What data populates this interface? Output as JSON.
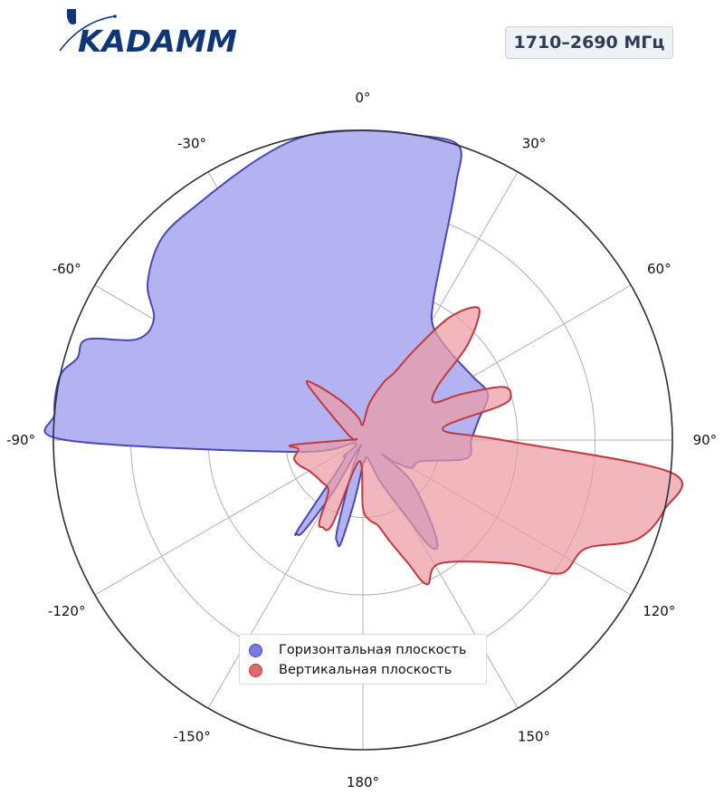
{
  "header": {
    "logo_text": "KADAMM",
    "band_label": "1710–2690 МГц"
  },
  "colors": {
    "horizontal_fill": "#b3b3f2",
    "horizontal_stroke": "#4b46b8",
    "vertical_fill": "#ec9ba3",
    "vertical_stroke": "#c0393f",
    "legend_horizontal": "#7a78ea",
    "legend_vertical": "#e0686f",
    "logo": "#10367a",
    "grid": "#b0b0b0",
    "outline": "#2d2d3a"
  },
  "chart_data": {
    "type": "polar-area",
    "theta_zero": "top",
    "theta_direction": "clockwise",
    "grid": true,
    "r_range": [
      0,
      1
    ],
    "r_gridlines": [
      0.25,
      0.5,
      0.75
    ],
    "theta_ticks": [
      "0°",
      "30°",
      "60°",
      "90°",
      "120°",
      "150°",
      "180°",
      "-150°",
      "-120°",
      "-90°",
      "-60°",
      "-30°"
    ],
    "legend_position": "bottom-center",
    "series": [
      {
        "name": "Горизонтальная плоскость",
        "points": [
          [
            0,
            1.0
          ],
          [
            10,
            1.0
          ],
          [
            18,
            1.0
          ],
          [
            20,
            0.88
          ],
          [
            23,
            0.66
          ],
          [
            27,
            0.5
          ],
          [
            32,
            0.43
          ],
          [
            45,
            0.4
          ],
          [
            60,
            0.41
          ],
          [
            70,
            0.43
          ],
          [
            80,
            0.38
          ],
          [
            90,
            0.35
          ],
          [
            100,
            0.34
          ],
          [
            110,
            0.2
          ],
          [
            120,
            0.18
          ],
          [
            125,
            0.12
          ],
          [
            127,
            0.08
          ],
          [
            130,
            0.2
          ],
          [
            140,
            0.34
          ],
          [
            145,
            0.42
          ],
          [
            148,
            0.4
          ],
          [
            150,
            0.3
          ],
          [
            157,
            0.15
          ],
          [
            165,
            0.06
          ],
          [
            175,
            0.07
          ],
          [
            180,
            0.08
          ],
          [
            188,
            0.2
          ],
          [
            192,
            0.34
          ],
          [
            194,
            0.34
          ],
          [
            196,
            0.3
          ],
          [
            200,
            0.1
          ],
          [
            205,
            0.02
          ],
          [
            210,
            0.2
          ],
          [
            213,
            0.35
          ],
          [
            215,
            0.37
          ],
          [
            216,
            0.35
          ],
          [
            222,
            0.1
          ],
          [
            230,
            0.08
          ],
          [
            250,
            0.03
          ],
          [
            260,
            0.22
          ],
          [
            270,
            0.96
          ],
          [
            275,
            1.0
          ],
          [
            282,
            1.0
          ],
          [
            286,
            0.96
          ],
          [
            290,
            0.95
          ],
          [
            294,
            0.8
          ],
          [
            300,
            0.78
          ],
          [
            306,
            0.86
          ],
          [
            315,
            0.92
          ],
          [
            325,
            0.93
          ],
          [
            340,
            0.97
          ],
          [
            350,
            1.0
          ],
          [
            360,
            1.0
          ]
        ]
      },
      {
        "name": "Вертикальная плоскость",
        "points": [
          [
            0,
            0.05
          ],
          [
            10,
            0.12
          ],
          [
            20,
            0.2
          ],
          [
            25,
            0.24
          ],
          [
            30,
            0.34
          ],
          [
            35,
            0.48
          ],
          [
            40,
            0.56
          ],
          [
            43,
            0.55
          ],
          [
            48,
            0.45
          ],
          [
            54,
            0.3
          ],
          [
            62,
            0.26
          ],
          [
            65,
            0.35
          ],
          [
            69,
            0.48
          ],
          [
            73,
            0.5
          ],
          [
            76,
            0.46
          ],
          [
            82,
            0.26
          ],
          [
            90,
            0.45
          ],
          [
            96,
            1.0
          ],
          [
            103,
            1.0
          ],
          [
            110,
            0.94
          ],
          [
            116,
            0.8
          ],
          [
            124,
            0.77
          ],
          [
            130,
            0.62
          ],
          [
            148,
            0.47
          ],
          [
            156,
            0.51
          ],
          [
            160,
            0.42
          ],
          [
            165,
            0.34
          ],
          [
            170,
            0.28
          ],
          [
            175,
            0.26
          ],
          [
            180,
            0.22
          ],
          [
            190,
            0.07
          ],
          [
            200,
            0.29
          ],
          [
            205,
            0.31
          ],
          [
            208,
            0.3
          ],
          [
            214,
            0.2
          ],
          [
            225,
            0.19
          ],
          [
            240,
            0.2
          ],
          [
            248,
            0.22
          ],
          [
            255,
            0.23
          ],
          [
            262,
            0.21
          ],
          [
            266,
            0.23
          ],
          [
            270,
            0.05
          ],
          [
            280,
            0.02
          ],
          [
            290,
            0.05
          ],
          [
            315,
            0.25
          ],
          [
            320,
            0.23
          ],
          [
            330,
            0.15
          ],
          [
            340,
            0.1
          ],
          [
            350,
            0.07
          ],
          [
            360,
            0.05
          ]
        ]
      }
    ]
  }
}
